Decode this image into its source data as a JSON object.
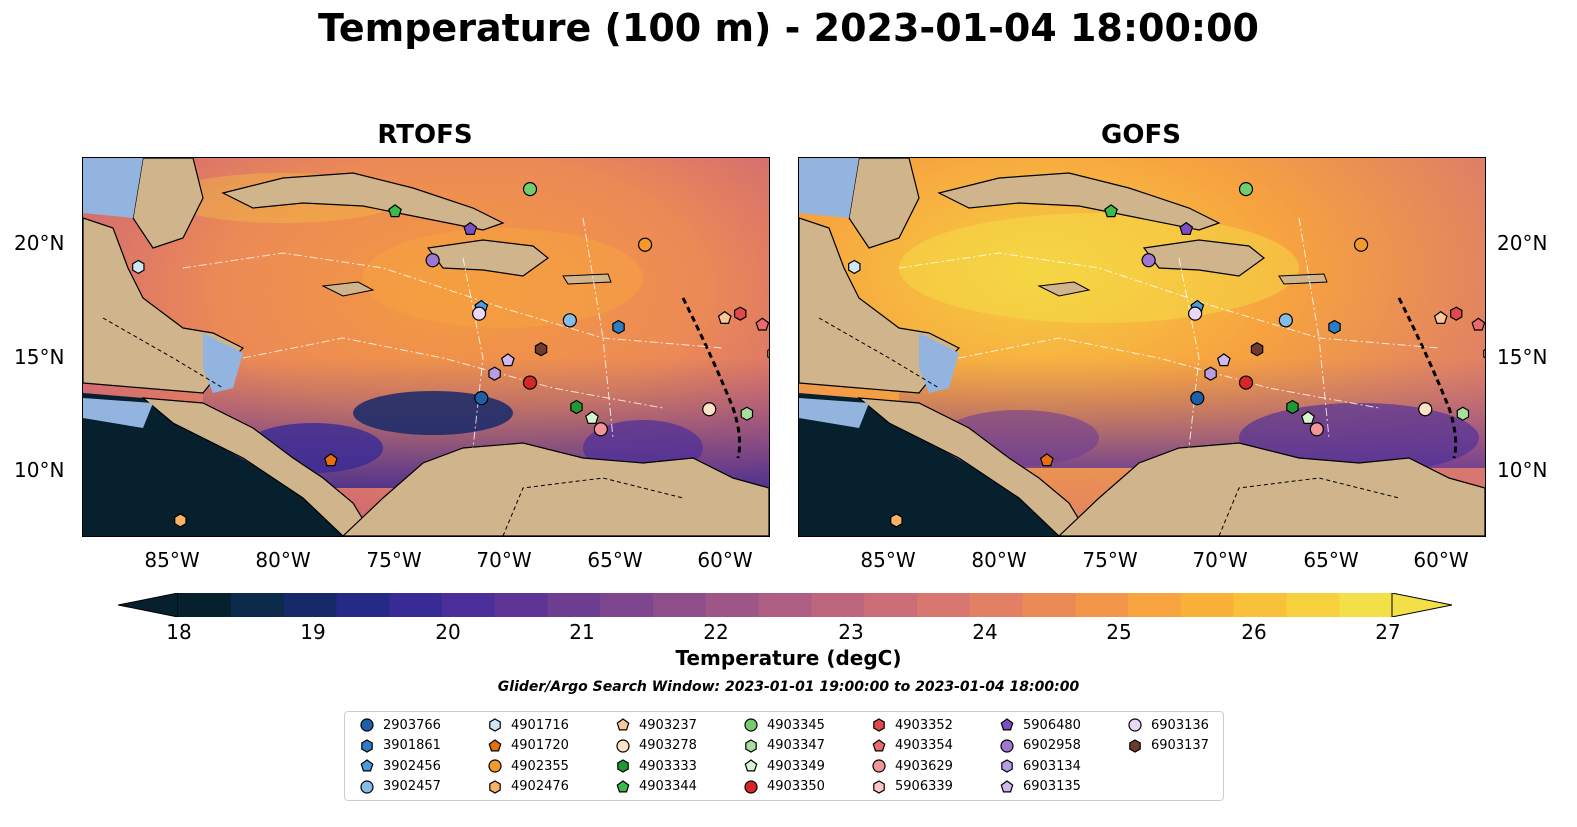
{
  "title": "Temperature (100 m) - 2023-01-04 18:00:00",
  "panels": [
    {
      "id": "rtofs",
      "title": "RTOFS"
    },
    {
      "id": "gofs",
      "title": "GOFS"
    }
  ],
  "axes": {
    "lat_ticks": [
      "20°N",
      "15°N",
      "10°N"
    ],
    "lon_ticks": [
      "85°W",
      "80°W",
      "75°W",
      "70°W",
      "65°W",
      "60°W"
    ],
    "lon_range": [
      -89,
      -58
    ],
    "lat_range": [
      7,
      24
    ]
  },
  "colorbar": {
    "ticks": [
      "18",
      "19",
      "20",
      "21",
      "22",
      "23",
      "24",
      "25",
      "26",
      "27"
    ],
    "label": "Temperature (degC)",
    "colors": [
      "#06202e",
      "#0c2a4a",
      "#16296a",
      "#252a86",
      "#382b96",
      "#4c2e9a",
      "#5e3596",
      "#6e3e92",
      "#7e468e",
      "#8e4e8a",
      "#9e5686",
      "#ae5e82",
      "#be667e",
      "#cc6e78",
      "#d87670",
      "#e37f64",
      "#ec8a56",
      "#f3964a",
      "#f7a33f",
      "#f9b13a",
      "#f9c03a",
      "#f7d03e",
      "#f3e048"
    ]
  },
  "search_window": "Glider/Argo Search Window: 2023-01-01 19:00:00 to 2023-01-04 18:00:00",
  "floats": [
    {
      "id": "2903766",
      "color": "#1f5fa8",
      "marker": "circle",
      "lon": -71.0,
      "lat": 13.2
    },
    {
      "id": "3901861",
      "color": "#2e7cc4",
      "marker": "hexagon",
      "lon": -64.8,
      "lat": 16.4
    },
    {
      "id": "3902456",
      "color": "#4a9be0",
      "marker": "pentagon",
      "lon": -71.0,
      "lat": 17.3
    },
    {
      "id": "3902457",
      "color": "#86bde8",
      "marker": "circle",
      "lon": -67.0,
      "lat": 16.7
    },
    {
      "id": "4901716",
      "color": "#cfe6f7",
      "marker": "hexagon",
      "lon": -86.5,
      "lat": 19.1
    },
    {
      "id": "4901720",
      "color": "#e8700c",
      "marker": "pentagon",
      "lon": -77.8,
      "lat": 10.4
    },
    {
      "id": "4902355",
      "color": "#f39a2e",
      "marker": "circle",
      "lon": -63.6,
      "lat": 20.1
    },
    {
      "id": "4902476",
      "color": "#f7b266",
      "marker": "hexagon",
      "lon": -84.6,
      "lat": 7.7
    },
    {
      "id": "4903237",
      "color": "#f8c89b",
      "marker": "pentagon",
      "lon": -60.0,
      "lat": 16.8
    },
    {
      "id": "4903278",
      "color": "#fde2c8",
      "marker": "circle",
      "lon": -60.7,
      "lat": 12.7
    },
    {
      "id": "4903333",
      "color": "#1e9a33",
      "marker": "hexagon",
      "lon": -66.7,
      "lat": 12.8
    },
    {
      "id": "4903344",
      "color": "#3dbb4a",
      "marker": "pentagon",
      "lon": -74.9,
      "lat": 21.6
    },
    {
      "id": "4903345",
      "color": "#74cc70",
      "marker": "circle",
      "lon": -68.8,
      "lat": 22.6
    },
    {
      "id": "4903347",
      "color": "#a6e09c",
      "marker": "hexagon",
      "lon": -59.0,
      "lat": 12.5
    },
    {
      "id": "4903349",
      "color": "#d6f4cf",
      "marker": "pentagon",
      "lon": -66.0,
      "lat": 12.3
    },
    {
      "id": "4903350",
      "color": "#d62728",
      "marker": "circle",
      "lon": -68.8,
      "lat": 13.9
    },
    {
      "id": "4903352",
      "color": "#e0484a",
      "marker": "hexagon",
      "lon": -59.3,
      "lat": 17.0
    },
    {
      "id": "4903354",
      "color": "#ec6a6e",
      "marker": "pentagon",
      "lon": -58.3,
      "lat": 16.5
    },
    {
      "id": "4903629",
      "color": "#f39598",
      "marker": "circle",
      "lon": -65.6,
      "lat": 11.8
    },
    {
      "id": "5906339",
      "color": "#fcc6c6",
      "marker": "hexagon",
      "lon": -57.8,
      "lat": 15.2
    },
    {
      "id": "5906480",
      "color": "#7b4fc2",
      "marker": "pentagon",
      "lon": -71.5,
      "lat": 20.8
    },
    {
      "id": "6902958",
      "color": "#9e78d0",
      "marker": "circle",
      "lon": -73.2,
      "lat": 19.4
    },
    {
      "id": "6903134",
      "color": "#b89fe3",
      "marker": "hexagon",
      "lon": -70.4,
      "lat": 14.3
    },
    {
      "id": "6903135",
      "color": "#d2b8f0",
      "marker": "pentagon",
      "lon": -69.8,
      "lat": 14.9
    },
    {
      "id": "6903136",
      "color": "#ead7f9",
      "marker": "circle",
      "lon": -71.1,
      "lat": 17.0
    },
    {
      "id": "6903137",
      "color": "#6e3b2c",
      "marker": "hexagon",
      "lon": -68.3,
      "lat": 15.4
    }
  ],
  "map_colors": {
    "land": "#d0b48c",
    "ocean_mask": "#94b4e0",
    "cold": "#06202e",
    "field_mid": "#ec8a56"
  }
}
